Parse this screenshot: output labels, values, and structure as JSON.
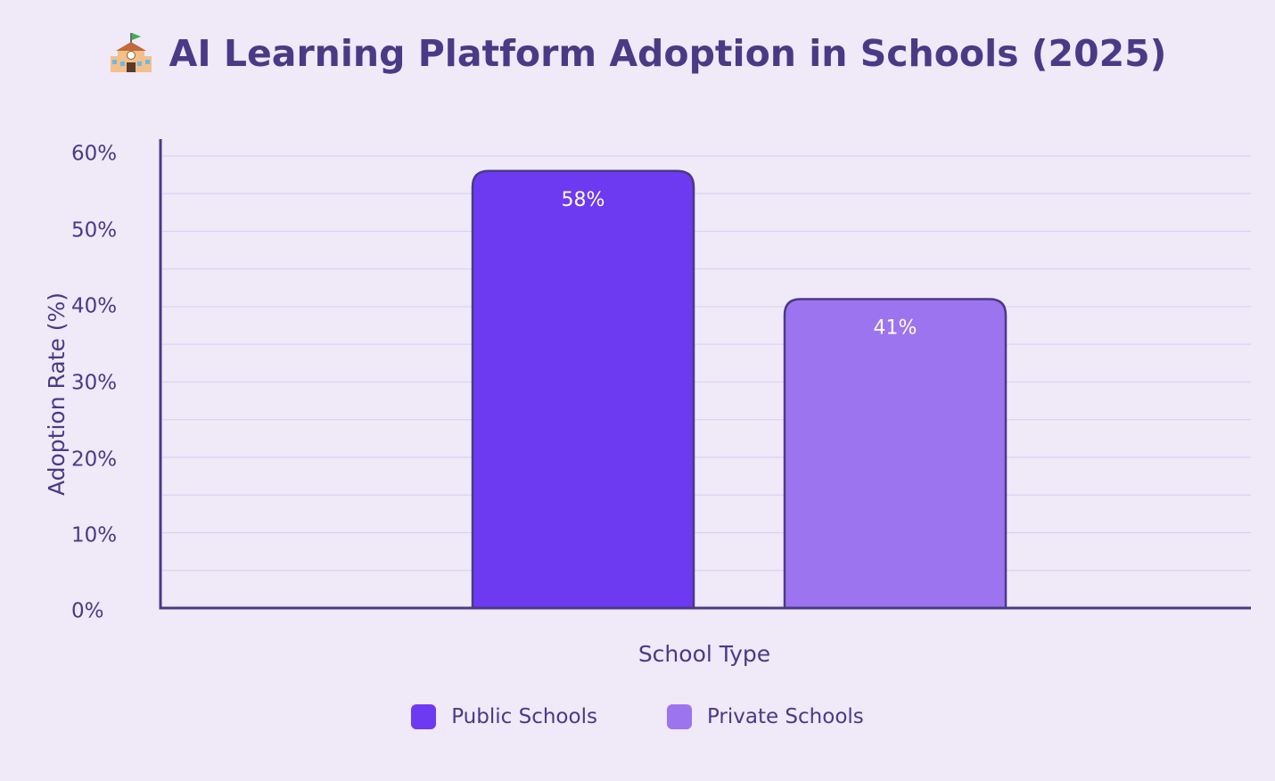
{
  "title": "AI Learning Platform Adoption in Schools (2025)",
  "title_icon": "school-building-icon",
  "colors": {
    "background": "#efe9f8",
    "text": "#4a3a86",
    "axis": "#4a3a86",
    "grid": "#d9d2f2",
    "bar_border": "#4a3a86",
    "public": "#6d3af2",
    "private": "#9d74ef",
    "bar_label": "#ffffff"
  },
  "chart_data": {
    "type": "bar",
    "title": "AI Learning Platform Adoption in Schools (2025)",
    "xlabel": "School Type",
    "ylabel": "Adoption Rate (%)",
    "ylim": [
      0,
      60
    ],
    "grid": true,
    "legend_position": "bottom-center",
    "y_ticks": [
      "0%",
      "10%",
      "20%",
      "30%",
      "40%",
      "50%",
      "60%"
    ],
    "series": [
      {
        "name": "Public Schools",
        "value": 58,
        "label": "58%",
        "color": "#6d3af2"
      },
      {
        "name": "Private Schools",
        "value": 41,
        "label": "41%",
        "color": "#9d74ef"
      }
    ]
  }
}
